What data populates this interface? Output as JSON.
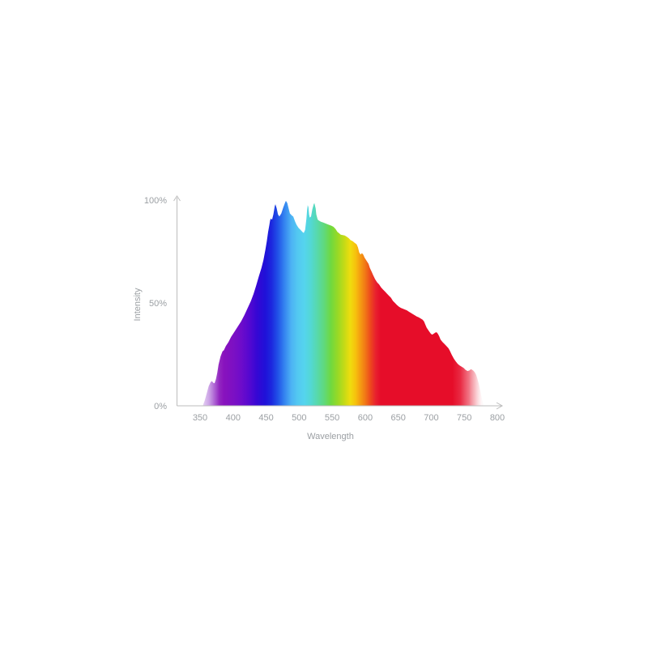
{
  "chart_data": {
    "type": "area",
    "title": "",
    "xlabel": "Wavelength",
    "ylabel": "Intensity",
    "xlim": [
      350,
      800
    ],
    "ylim": [
      0,
      100
    ],
    "x_ticks": [
      350,
      400,
      450,
      500,
      550,
      600,
      650,
      700,
      750,
      800
    ],
    "y_ticks": [
      {
        "value": 0,
        "label": "0%"
      },
      {
        "value": 50,
        "label": "50%"
      },
      {
        "value": 100,
        "label": "100%"
      }
    ],
    "grid": false,
    "legend": false,
    "axis_color": "#bcbcbc",
    "label_color": "#9b9fa3",
    "series": [
      {
        "name": "spectral-intensity",
        "points": [
          [
            354,
            0
          ],
          [
            357,
            2.5
          ],
          [
            360,
            6
          ],
          [
            363,
            9.5
          ],
          [
            366,
            11.5
          ],
          [
            368,
            12
          ],
          [
            370,
            11.2
          ],
          [
            372,
            11
          ],
          [
            374,
            13
          ],
          [
            376,
            16
          ],
          [
            378,
            20
          ],
          [
            381,
            24
          ],
          [
            384,
            26.5
          ],
          [
            386,
            27
          ],
          [
            389,
            29
          ],
          [
            393,
            31
          ],
          [
            397,
            33.5
          ],
          [
            402,
            36
          ],
          [
            407,
            38.5
          ],
          [
            412,
            41
          ],
          [
            417,
            44
          ],
          [
            422,
            47.5
          ],
          [
            427,
            51
          ],
          [
            431,
            54.5
          ],
          [
            435,
            58.5
          ],
          [
            439,
            63
          ],
          [
            443,
            67
          ],
          [
            446,
            71
          ],
          [
            449,
            76
          ],
          [
            451,
            80
          ],
          [
            453,
            84.5
          ],
          [
            455,
            88
          ],
          [
            456,
            90
          ],
          [
            457,
            91
          ],
          [
            459,
            90.5
          ],
          [
            461,
            93
          ],
          [
            463,
            97
          ],
          [
            464,
            98
          ],
          [
            466,
            96
          ],
          [
            468,
            93
          ],
          [
            470,
            92
          ],
          [
            473,
            93.5
          ],
          [
            476,
            96.5
          ],
          [
            479,
            99
          ],
          [
            480,
            99.6
          ],
          [
            482,
            98.5
          ],
          [
            484,
            96
          ],
          [
            486,
            93.5
          ],
          [
            489,
            92.5
          ],
          [
            491,
            92
          ],
          [
            494,
            89.5
          ],
          [
            496,
            88
          ],
          [
            499,
            86.5
          ],
          [
            502,
            85.5
          ],
          [
            505,
            84.5
          ],
          [
            507,
            84
          ],
          [
            509,
            85.5
          ],
          [
            511,
            91
          ],
          [
            512,
            95
          ],
          [
            513,
            97.5
          ],
          [
            514,
            96.5
          ],
          [
            515,
            93
          ],
          [
            516,
            91.5
          ],
          [
            518,
            92
          ],
          [
            520,
            95.5
          ],
          [
            522,
            98
          ],
          [
            523,
            98.5
          ],
          [
            525,
            96
          ],
          [
            526,
            93
          ],
          [
            528,
            90.5
          ],
          [
            530,
            90
          ],
          [
            533,
            89.5
          ],
          [
            537,
            89
          ],
          [
            541,
            88.5
          ],
          [
            545,
            88
          ],
          [
            549,
            87.5
          ],
          [
            552,
            87
          ],
          [
            555,
            86
          ],
          [
            558,
            84.5
          ],
          [
            560,
            84
          ],
          [
            563,
            83.2
          ],
          [
            566,
            83
          ],
          [
            569,
            82.8
          ],
          [
            572,
            82.2
          ],
          [
            575,
            81.5
          ],
          [
            578,
            80.5
          ],
          [
            581,
            80
          ],
          [
            584,
            79.2
          ],
          [
            587,
            78.5
          ],
          [
            589,
            77
          ],
          [
            591,
            74.5
          ],
          [
            593,
            73.5
          ],
          [
            595,
            74.2
          ],
          [
            597,
            73.5
          ],
          [
            599,
            72
          ],
          [
            602,
            70.5
          ],
          [
            605,
            69
          ],
          [
            607,
            67
          ],
          [
            610,
            65
          ],
          [
            612,
            63.5
          ],
          [
            615,
            61.5
          ],
          [
            618,
            60
          ],
          [
            621,
            59
          ],
          [
            624,
            57.5
          ],
          [
            627,
            56.5
          ],
          [
            630,
            55.5
          ],
          [
            633,
            54.5
          ],
          [
            636,
            53.5
          ],
          [
            639,
            52.5
          ],
          [
            642,
            51
          ],
          [
            645,
            50
          ],
          [
            648,
            49
          ],
          [
            651,
            48.2
          ],
          [
            654,
            47.6
          ],
          [
            657,
            47.2
          ],
          [
            660,
            46.8
          ],
          [
            663,
            46.4
          ],
          [
            666,
            45.8
          ],
          [
            669,
            45.2
          ],
          [
            672,
            44.6
          ],
          [
            675,
            44
          ],
          [
            678,
            43.4
          ],
          [
            681,
            43
          ],
          [
            684,
            42.4
          ],
          [
            687,
            41.8
          ],
          [
            689,
            41
          ],
          [
            691,
            39.5
          ],
          [
            693,
            38
          ],
          [
            696,
            36.5
          ],
          [
            699,
            35.2
          ],
          [
            701,
            34.6
          ],
          [
            703,
            34.9
          ],
          [
            706,
            35.6
          ],
          [
            708,
            35.8
          ],
          [
            710,
            35
          ],
          [
            712,
            33.8
          ],
          [
            714,
            32.2
          ],
          [
            717,
            31
          ],
          [
            720,
            30
          ],
          [
            723,
            29
          ],
          [
            726,
            28
          ],
          [
            728,
            26.8
          ],
          [
            731,
            24.8
          ],
          [
            734,
            23
          ],
          [
            737,
            21.6
          ],
          [
            740,
            20.4
          ],
          [
            743,
            19.6
          ],
          [
            746,
            19
          ],
          [
            749,
            18.4
          ],
          [
            752,
            17.4
          ],
          [
            755,
            16.9
          ],
          [
            758,
            17.2
          ],
          [
            760,
            17.8
          ],
          [
            762,
            17.5
          ],
          [
            764,
            17
          ],
          [
            766,
            16.2
          ],
          [
            768,
            15
          ],
          [
            770,
            13
          ],
          [
            772,
            10.5
          ],
          [
            774,
            7.5
          ],
          [
            776,
            4.5
          ],
          [
            778,
            1.5
          ],
          [
            779,
            0
          ]
        ]
      }
    ],
    "spectrum_gradient": [
      {
        "wavelength": 350,
        "color": "#b477dd",
        "opacity": 0
      },
      {
        "wavelength": 356,
        "color": "#ad6bd9",
        "opacity": 0.38
      },
      {
        "wavelength": 363,
        "color": "#a55ed3",
        "opacity": 0.55
      },
      {
        "wavelength": 371,
        "color": "#993fc9",
        "opacity": 0.78
      },
      {
        "wavelength": 379,
        "color": "#8d1cbd",
        "opacity": 0.95
      },
      {
        "wavelength": 386,
        "color": "#8812bd",
        "opacity": 1
      },
      {
        "wavelength": 400,
        "color": "#7d10c3",
        "opacity": 1
      },
      {
        "wavelength": 412,
        "color": "#6e0cca",
        "opacity": 1
      },
      {
        "wavelength": 424,
        "color": "#5608d0",
        "opacity": 1
      },
      {
        "wavelength": 436,
        "color": "#3607d4",
        "opacity": 1
      },
      {
        "wavelength": 448,
        "color": "#2010d8",
        "opacity": 1
      },
      {
        "wavelength": 458,
        "color": "#1c27de",
        "opacity": 1
      },
      {
        "wavelength": 468,
        "color": "#2153e8",
        "opacity": 1
      },
      {
        "wavelength": 478,
        "color": "#3585f0",
        "opacity": 1
      },
      {
        "wavelength": 488,
        "color": "#4cb2f4",
        "opacity": 1
      },
      {
        "wavelength": 498,
        "color": "#53c9f1",
        "opacity": 1
      },
      {
        "wavelength": 508,
        "color": "#55d4ee",
        "opacity": 1
      },
      {
        "wavelength": 518,
        "color": "#53d8d2",
        "opacity": 1
      },
      {
        "wavelength": 528,
        "color": "#58d9a8",
        "opacity": 1
      },
      {
        "wavelength": 538,
        "color": "#60d97b",
        "opacity": 1
      },
      {
        "wavelength": 548,
        "color": "#6fd93f",
        "opacity": 1
      },
      {
        "wavelength": 558,
        "color": "#97d926",
        "opacity": 1
      },
      {
        "wavelength": 568,
        "color": "#c3da17",
        "opacity": 1
      },
      {
        "wavelength": 577,
        "color": "#eedd0e",
        "opacity": 1
      },
      {
        "wavelength": 585,
        "color": "#f6c30d",
        "opacity": 1
      },
      {
        "wavelength": 592,
        "color": "#f59f11",
        "opacity": 1
      },
      {
        "wavelength": 600,
        "color": "#f17716",
        "opacity": 1
      },
      {
        "wavelength": 608,
        "color": "#ed481d",
        "opacity": 1
      },
      {
        "wavelength": 616,
        "color": "#e8202f",
        "opacity": 1
      },
      {
        "wavelength": 623,
        "color": "#e60d29",
        "opacity": 1
      },
      {
        "wavelength": 732,
        "color": "#e60d29",
        "opacity": 1
      },
      {
        "wavelength": 744,
        "color": "#e60d29",
        "opacity": 0.88
      },
      {
        "wavelength": 757,
        "color": "#e71933",
        "opacity": 0.6
      },
      {
        "wavelength": 766,
        "color": "#ea3c50",
        "opacity": 0.35
      },
      {
        "wavelength": 776,
        "color": "#f07c8a",
        "opacity": 0.06
      },
      {
        "wavelength": 800,
        "color": "#ffffff",
        "opacity": 0
      }
    ]
  }
}
